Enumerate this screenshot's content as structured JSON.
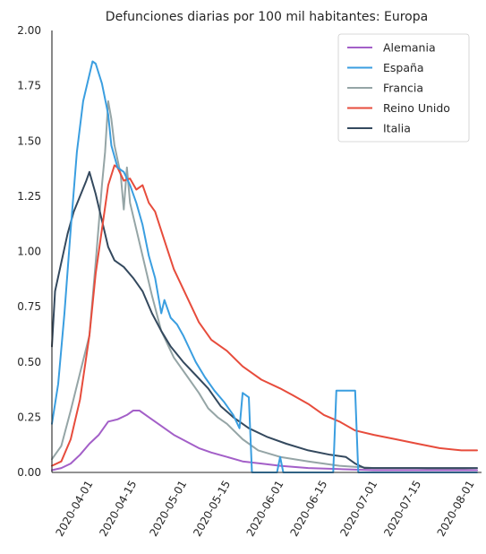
{
  "chart_data": {
    "type": "line",
    "title": "Defunciones diarias por 100 mil habitantes: Europa",
    "xlabel": "",
    "ylabel": "",
    "x_range": [
      "2020-03-20",
      "2020-08-03"
    ],
    "ylim": [
      0,
      2
    ],
    "y_ticks": [
      "0.00",
      "0.25",
      "0.50",
      "0.75",
      "1.00",
      "1.25",
      "1.50",
      "1.75",
      "2.00"
    ],
    "x_ticks": [
      "2020-04-01",
      "2020-04-15",
      "2020-05-01",
      "2020-05-15",
      "2020-06-01",
      "2020-06-15",
      "2020-07-01",
      "2020-07-15",
      "2020-08-01"
    ],
    "grid": false,
    "legend_position": "top-right",
    "series": [
      {
        "name": "Alemania",
        "color": "#a35fc8",
        "points": [
          [
            "2020-03-20",
            0.01
          ],
          [
            "2020-03-23",
            0.02
          ],
          [
            "2020-03-26",
            0.04
          ],
          [
            "2020-03-29",
            0.08
          ],
          [
            "2020-04-01",
            0.13
          ],
          [
            "2020-04-04",
            0.17
          ],
          [
            "2020-04-07",
            0.23
          ],
          [
            "2020-04-10",
            0.24
          ],
          [
            "2020-04-13",
            0.26
          ],
          [
            "2020-04-15",
            0.28
          ],
          [
            "2020-04-17",
            0.28
          ],
          [
            "2020-04-20",
            0.25
          ],
          [
            "2020-04-24",
            0.21
          ],
          [
            "2020-04-28",
            0.17
          ],
          [
            "2020-05-02",
            0.14
          ],
          [
            "2020-05-06",
            0.11
          ],
          [
            "2020-05-10",
            0.09
          ],
          [
            "2020-05-15",
            0.07
          ],
          [
            "2020-05-20",
            0.05
          ],
          [
            "2020-05-26",
            0.04
          ],
          [
            "2020-06-01",
            0.03
          ],
          [
            "2020-06-10",
            0.02
          ],
          [
            "2020-06-20",
            0.015
          ],
          [
            "2020-07-01",
            0.01
          ],
          [
            "2020-07-15",
            0.01
          ],
          [
            "2020-08-03",
            0.01
          ]
        ]
      },
      {
        "name": "España",
        "color": "#3a9ee0",
        "points": [
          [
            "2020-03-20",
            0.22
          ],
          [
            "2020-03-22",
            0.4
          ],
          [
            "2020-03-24",
            0.72
          ],
          [
            "2020-03-26",
            1.1
          ],
          [
            "2020-03-28",
            1.45
          ],
          [
            "2020-03-30",
            1.68
          ],
          [
            "2020-04-01",
            1.8
          ],
          [
            "2020-04-02",
            1.86
          ],
          [
            "2020-04-03",
            1.85
          ],
          [
            "2020-04-05",
            1.76
          ],
          [
            "2020-04-07",
            1.62
          ],
          [
            "2020-04-08",
            1.48
          ],
          [
            "2020-04-10",
            1.38
          ],
          [
            "2020-04-12",
            1.36
          ],
          [
            "2020-04-14",
            1.3
          ],
          [
            "2020-04-16",
            1.22
          ],
          [
            "2020-04-18",
            1.12
          ],
          [
            "2020-04-20",
            0.98
          ],
          [
            "2020-04-22",
            0.88
          ],
          [
            "2020-04-24",
            0.72
          ],
          [
            "2020-04-25",
            0.78
          ],
          [
            "2020-04-27",
            0.7
          ],
          [
            "2020-04-29",
            0.67
          ],
          [
            "2020-05-01",
            0.62
          ],
          [
            "2020-05-03",
            0.56
          ],
          [
            "2020-05-05",
            0.5
          ],
          [
            "2020-05-08",
            0.43
          ],
          [
            "2020-05-11",
            0.37
          ],
          [
            "2020-05-14",
            0.32
          ],
          [
            "2020-05-17",
            0.26
          ],
          [
            "2020-05-19",
            0.2
          ],
          [
            "2020-05-20",
            0.36
          ],
          [
            "2020-05-22",
            0.34
          ],
          [
            "2020-05-23",
            0.0
          ],
          [
            "2020-05-31",
            0.0
          ],
          [
            "2020-06-01",
            0.07
          ],
          [
            "2020-06-02",
            0.0
          ],
          [
            "2020-06-18",
            0.0
          ],
          [
            "2020-06-19",
            0.37
          ],
          [
            "2020-06-25",
            0.37
          ],
          [
            "2020-06-26",
            0.0
          ],
          [
            "2020-08-03",
            0.0
          ]
        ]
      },
      {
        "name": "Francia",
        "color": "#95a5a6",
        "points": [
          [
            "2020-03-20",
            0.06
          ],
          [
            "2020-03-23",
            0.12
          ],
          [
            "2020-03-26",
            0.28
          ],
          [
            "2020-03-29",
            0.45
          ],
          [
            "2020-04-01",
            0.62
          ],
          [
            "2020-04-03",
            0.95
          ],
          [
            "2020-04-05",
            1.3
          ],
          [
            "2020-04-06",
            1.45
          ],
          [
            "2020-04-07",
            1.68
          ],
          [
            "2020-04-08",
            1.6
          ],
          [
            "2020-04-09",
            1.48
          ],
          [
            "2020-04-11",
            1.35
          ],
          [
            "2020-04-12",
            1.19
          ],
          [
            "2020-04-13",
            1.38
          ],
          [
            "2020-04-14",
            1.22
          ],
          [
            "2020-04-16",
            1.1
          ],
          [
            "2020-04-18",
            0.98
          ],
          [
            "2020-04-21",
            0.8
          ],
          [
            "2020-04-24",
            0.64
          ],
          [
            "2020-04-28",
            0.52
          ],
          [
            "2020-05-02",
            0.44
          ],
          [
            "2020-05-06",
            0.36
          ],
          [
            "2020-05-09",
            0.29
          ],
          [
            "2020-05-12",
            0.25
          ],
          [
            "2020-05-15",
            0.22
          ],
          [
            "2020-05-20",
            0.15
          ],
          [
            "2020-05-25",
            0.1
          ],
          [
            "2020-06-01",
            0.07
          ],
          [
            "2020-06-10",
            0.05
          ],
          [
            "2020-06-20",
            0.03
          ],
          [
            "2020-07-01",
            0.02
          ],
          [
            "2020-07-15",
            0.02
          ],
          [
            "2020-08-03",
            0.01
          ]
        ]
      },
      {
        "name": "Reino Unido",
        "color": "#e74c3c",
        "points": [
          [
            "2020-03-20",
            0.03
          ],
          [
            "2020-03-23",
            0.05
          ],
          [
            "2020-03-26",
            0.15
          ],
          [
            "2020-03-29",
            0.33
          ],
          [
            "2020-04-01",
            0.62
          ],
          [
            "2020-04-03",
            0.9
          ],
          [
            "2020-04-05",
            1.1
          ],
          [
            "2020-04-07",
            1.3
          ],
          [
            "2020-04-09",
            1.39
          ],
          [
            "2020-04-10",
            1.38
          ],
          [
            "2020-04-12",
            1.32
          ],
          [
            "2020-04-14",
            1.33
          ],
          [
            "2020-04-16",
            1.28
          ],
          [
            "2020-04-18",
            1.3
          ],
          [
            "2020-04-20",
            1.22
          ],
          [
            "2020-04-22",
            1.18
          ],
          [
            "2020-04-25",
            1.05
          ],
          [
            "2020-04-28",
            0.92
          ],
          [
            "2020-05-02",
            0.8
          ],
          [
            "2020-05-06",
            0.68
          ],
          [
            "2020-05-10",
            0.6
          ],
          [
            "2020-05-15",
            0.55
          ],
          [
            "2020-05-20",
            0.48
          ],
          [
            "2020-05-23",
            0.45
          ],
          [
            "2020-05-26",
            0.42
          ],
          [
            "2020-06-01",
            0.38
          ],
          [
            "2020-06-05",
            0.35
          ],
          [
            "2020-06-10",
            0.31
          ],
          [
            "2020-06-15",
            0.26
          ],
          [
            "2020-06-20",
            0.23
          ],
          [
            "2020-06-25",
            0.19
          ],
          [
            "2020-07-01",
            0.17
          ],
          [
            "2020-07-08",
            0.15
          ],
          [
            "2020-07-15",
            0.13
          ],
          [
            "2020-07-22",
            0.11
          ],
          [
            "2020-07-29",
            0.1
          ],
          [
            "2020-08-03",
            0.1
          ]
        ]
      },
      {
        "name": "Italia",
        "color": "#34495e",
        "points": [
          [
            "2020-03-20",
            0.57
          ],
          [
            "2020-03-21",
            0.82
          ],
          [
            "2020-03-23",
            0.95
          ],
          [
            "2020-03-25",
            1.08
          ],
          [
            "2020-03-27",
            1.18
          ],
          [
            "2020-03-29",
            1.25
          ],
          [
            "2020-03-31",
            1.32
          ],
          [
            "2020-04-01",
            1.36
          ],
          [
            "2020-04-03",
            1.26
          ],
          [
            "2020-04-05",
            1.14
          ],
          [
            "2020-04-07",
            1.02
          ],
          [
            "2020-04-09",
            0.96
          ],
          [
            "2020-04-12",
            0.93
          ],
          [
            "2020-04-15",
            0.88
          ],
          [
            "2020-04-18",
            0.82
          ],
          [
            "2020-04-21",
            0.72
          ],
          [
            "2020-04-24",
            0.64
          ],
          [
            "2020-04-27",
            0.57
          ],
          [
            "2020-05-01",
            0.5
          ],
          [
            "2020-05-05",
            0.44
          ],
          [
            "2020-05-09",
            0.38
          ],
          [
            "2020-05-13",
            0.3
          ],
          [
            "2020-05-17",
            0.25
          ],
          [
            "2020-05-22",
            0.2
          ],
          [
            "2020-05-28",
            0.16
          ],
          [
            "2020-06-03",
            0.13
          ],
          [
            "2020-06-10",
            0.1
          ],
          [
            "2020-06-17",
            0.08
          ],
          [
            "2020-06-22",
            0.07
          ],
          [
            "2020-06-25",
            0.04
          ],
          [
            "2020-06-28",
            0.02
          ],
          [
            "2020-07-05",
            0.02
          ],
          [
            "2020-07-15",
            0.02
          ],
          [
            "2020-07-25",
            0.02
          ],
          [
            "2020-08-03",
            0.02
          ]
        ]
      }
    ]
  }
}
